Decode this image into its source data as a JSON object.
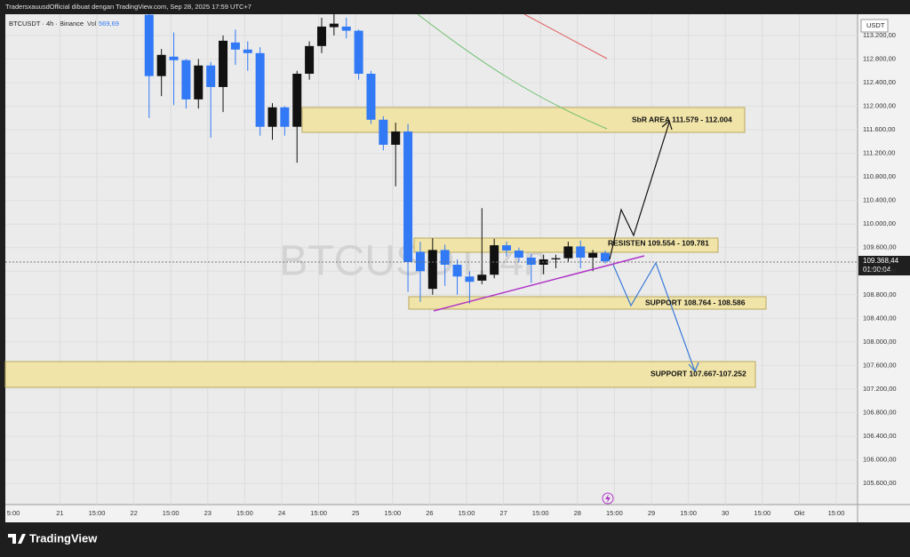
{
  "chart_data": {
    "type": "candlestick",
    "header": "TradersxauusdOfficial dibuat dengan TradingView.com, Sep 28, 2025 17:59 UTC+7",
    "symbol": "BTCUSDT · 4h · Binance",
    "vol_label": "Vol",
    "vol_value": "569,69",
    "watermark": "BTCUSDT, 4h",
    "currency": "USDT",
    "last_price_label": "109.368,44",
    "countdown": "01:00:04",
    "brand": "TradingView",
    "up_color": "#111111",
    "down_color": "#3179f5",
    "grid": true,
    "ylim": [
      105240,
      113560
    ],
    "yticks": [
      {
        "value": 113200,
        "label": "113.200,00"
      },
      {
        "value": 112800,
        "label": "112.800,00"
      },
      {
        "value": 112400,
        "label": "112.400,00"
      },
      {
        "value": 112000,
        "label": "112.000,00"
      },
      {
        "value": 111600,
        "label": "111.600,00"
      },
      {
        "value": 111200,
        "label": "111.200,00"
      },
      {
        "value": 110800,
        "label": "110.800,00"
      },
      {
        "value": 110400,
        "label": "110.400,00"
      },
      {
        "value": 110000,
        "label": "110.000,00"
      },
      {
        "value": 109600,
        "label": "109.600,00"
      },
      {
        "value": 109200,
        "label": "109.200,00"
      },
      {
        "value": 108800,
        "label": "108.800,00"
      },
      {
        "value": 108400,
        "label": "108.400,00"
      },
      {
        "value": 108000,
        "label": "108.000,00"
      },
      {
        "value": 107600,
        "label": "107.600,00"
      },
      {
        "value": 107200,
        "label": "107.200,00"
      },
      {
        "value": 106800,
        "label": "106.800,00"
      },
      {
        "value": 106400,
        "label": "106.400,00"
      },
      {
        "value": 106000,
        "label": "106.000,00"
      },
      {
        "value": 105600,
        "label": "105.600,00"
      }
    ],
    "x_labels": [
      "5:00",
      "21",
      "15:00",
      "22",
      "15:00",
      "23",
      "15:00",
      "24",
      "15:00",
      "25",
      "15:00",
      "26",
      "15:00",
      "27",
      "15:00",
      "28",
      "15:00",
      "29",
      "15:00",
      "30",
      "15:00",
      "Okt",
      "15:00"
    ],
    "open": [
      113550,
      112510,
      112840,
      112780,
      112115,
      112690,
      112325,
      113080,
      112960,
      112900,
      111650,
      111980,
      111650,
      112550,
      113020,
      113340,
      113350,
      113280,
      112550,
      111770,
      111345,
      111570,
      109530,
      108900,
      109560,
      109310,
      109110,
      109040,
      109140,
      109640,
      109550,
      109430,
      109310,
      109400,
      109420,
      109620,
      109430,
      109510
    ],
    "high": [
      113560,
      112970,
      113250,
      112800,
      112800,
      112750,
      113200,
      113300,
      113100,
      113000,
      112050,
      112000,
      112600,
      113100,
      113500,
      113560,
      113500,
      113300,
      112600,
      111830,
      111720,
      111700,
      109700,
      109760,
      109650,
      109400,
      109200,
      110270,
      109750,
      109700,
      109600,
      109500,
      109480,
      109480,
      109700,
      109720,
      109560,
      109550
    ],
    "low": [
      111800,
      112170,
      112020,
      111960,
      111960,
      111465,
      111900,
      112700,
      112600,
      111500,
      111430,
      111500,
      111040,
      112450,
      112900,
      113200,
      113150,
      112450,
      111700,
      111250,
      110640,
      108850,
      108680,
      108800,
      108950,
      108800,
      108650,
      108980,
      109080,
      109450,
      109350,
      109000,
      109150,
      109250,
      109350,
      109250,
      109200,
      109330
    ],
    "close": [
      112510,
      112870,
      112780,
      112115,
      112690,
      112325,
      113110,
      112960,
      112900,
      111650,
      111980,
      111650,
      112550,
      113020,
      113350,
      113400,
      113280,
      112550,
      111770,
      111345,
      111570,
      109355,
      109200,
      109560,
      109310,
      109110,
      109020,
      109140,
      109640,
      109550,
      109430,
      109310,
      109400,
      109420,
      109620,
      109430,
      109510,
      109368
    ],
    "annotations": [
      "SbR AREA 111.579 - 112.004",
      "RESISTEN 109.554 - 109.781",
      "SUPPORT 108.764 - 108.586",
      "SUPPORT 107.667-107.252"
    ]
  }
}
